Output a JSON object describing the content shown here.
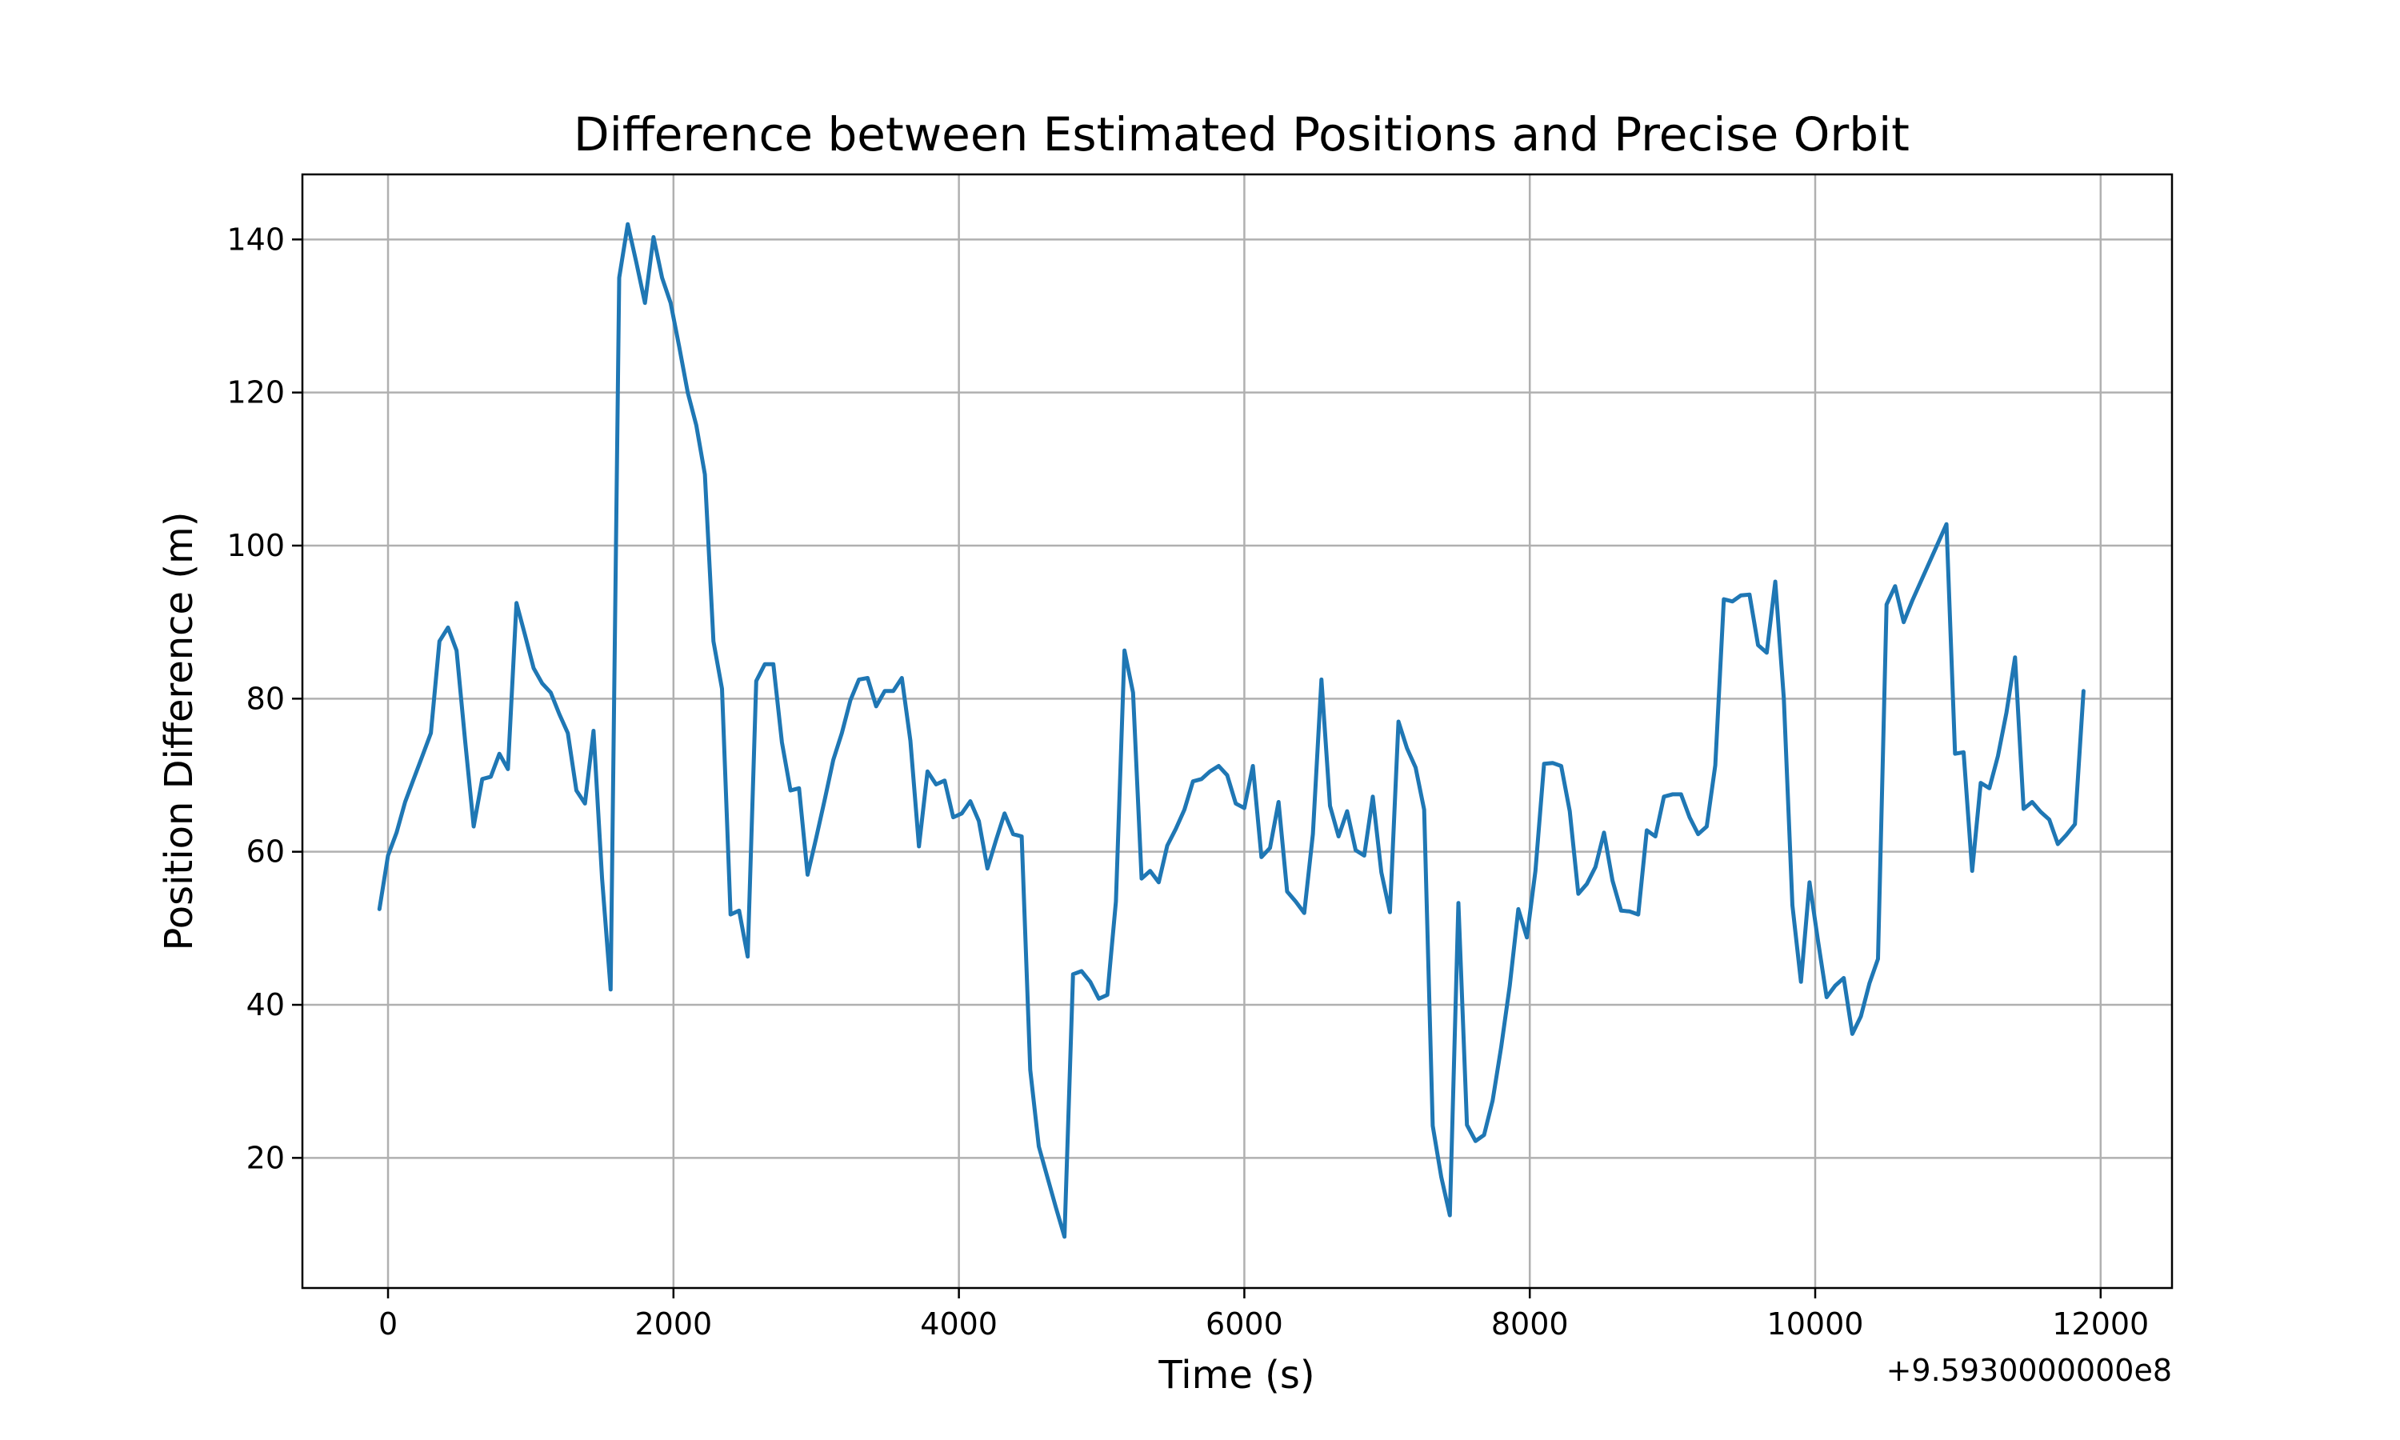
{
  "chart_data": {
    "type": "line",
    "title": "Difference between Estimated Positions and Precise Orbit",
    "xlabel": "Time (s)",
    "ylabel": "Position Difference (m)",
    "x_offset_label": "+9.5930000000e8",
    "xlim": [
      -600,
      12500
    ],
    "ylim": [
      3,
      148.5
    ],
    "x_ticks": [
      0,
      2000,
      4000,
      6000,
      8000,
      10000,
      12000
    ],
    "x_tick_labels": [
      "0",
      "2000",
      "4000",
      "6000",
      "8000",
      "10000",
      "12000"
    ],
    "y_ticks": [
      20,
      40,
      60,
      80,
      100,
      120,
      140
    ],
    "y_tick_labels": [
      "20",
      "40",
      "60",
      "80",
      "100",
      "120",
      "140"
    ],
    "grid": true,
    "line_color": "#1f77b4",
    "series": [
      {
        "x": [
          -60,
          0,
          60,
          120,
          180,
          240,
          300,
          360,
          420,
          480,
          540,
          600,
          660,
          720,
          780,
          840,
          900,
          960,
          1020,
          1080,
          1140,
          1200,
          1260,
          1320,
          1380,
          1440,
          1500,
          1560,
          1620,
          1680,
          1740,
          1800,
          1860,
          1920,
          1980,
          2040,
          2100,
          2160,
          2220,
          2280,
          2340,
          2400,
          2460,
          2520,
          2580,
          2640,
          2700,
          2760,
          2820,
          2880,
          2940,
          3000,
          3060,
          3120,
          3180,
          3240,
          3300,
          3360,
          3420,
          3480,
          3540,
          3600,
          3660,
          3720,
          3780,
          3840,
          3900,
          3960,
          4020,
          4080,
          4140,
          4200,
          4260,
          4320,
          4380,
          4440,
          4500,
          4560,
          4620,
          4680,
          4740,
          4800,
          4860,
          4920,
          4980,
          5040,
          5100,
          5160,
          5220,
          5280,
          5340,
          5400,
          5460,
          5520,
          5580,
          5640,
          5700,
          5760,
          5820,
          5880,
          5940,
          6000,
          6060,
          6120,
          6180,
          6240,
          6300,
          6360,
          6420,
          6480,
          6540,
          6600,
          6660,
          6720,
          6780,
          6840,
          6900,
          6960,
          7020,
          7080,
          7140,
          7200,
          7260,
          7320,
          7380,
          7440,
          7500,
          7560,
          7620,
          7680,
          7740,
          7800,
          7860,
          7920,
          7980,
          8040,
          8100,
          8160,
          8220,
          8280,
          8340,
          8400,
          8460,
          8520,
          8580,
          8640,
          8700,
          8760,
          8820,
          8880,
          8940,
          9000,
          9060,
          9120,
          9180,
          9240,
          9300,
          9360,
          9420,
          9480,
          9540,
          9600,
          9660,
          9720,
          9780,
          9840,
          9900,
          9960,
          10020,
          10080,
          10140,
          10200,
          10260,
          10320,
          10380,
          10440,
          10500,
          10560,
          10620,
          10680,
          10920,
          10980,
          11040,
          11100,
          11160,
          11220,
          11280,
          11340,
          11400,
          11460,
          11520,
          11580,
          11640,
          11700,
          11760,
          11820,
          11880
        ],
        "y": [
          52.5,
          59.5,
          62.5,
          66.5,
          69.5,
          72.5,
          75.5,
          87.5,
          89.3,
          86.3,
          74.5,
          63.3,
          69.5,
          69.8,
          72.8,
          70.8,
          92.5,
          88.3,
          84.0,
          82.0,
          80.8,
          78.0,
          75.5,
          68.0,
          66.3,
          75.8,
          56.5,
          42.0,
          135.0,
          142.0,
          137.0,
          131.7,
          140.3,
          135.0,
          131.7,
          126.0,
          120.0,
          115.7,
          109.3,
          87.5,
          81.3,
          51.8,
          52.3,
          46.3,
          82.3,
          84.5,
          84.5,
          74.3,
          68.0,
          68.3,
          57.0,
          61.8,
          66.8,
          72.0,
          75.5,
          79.8,
          82.5,
          82.7,
          79.0,
          81.0,
          81.0,
          82.7,
          74.5,
          60.7,
          70.5,
          68.8,
          69.3,
          64.5,
          65.0,
          66.6,
          64.0,
          57.8,
          61.5,
          65.0,
          62.3,
          62.0,
          31.5,
          21.5,
          17.5,
          13.5,
          9.7,
          44.0,
          44.4,
          43.0,
          40.8,
          41.3,
          53.5,
          86.3,
          80.8,
          56.5,
          57.5,
          56.0,
          60.8,
          63.0,
          65.5,
          69.2,
          69.5,
          70.5,
          71.2,
          70.0,
          66.3,
          65.7,
          71.2,
          59.3,
          60.5,
          66.5,
          54.8,
          53.5,
          52.0,
          62.3,
          82.5,
          66.0,
          62.0,
          65.3,
          60.2,
          59.5,
          67.2,
          57.3,
          52.1,
          77.0,
          73.5,
          71.0,
          65.5,
          24.2,
          17.5,
          12.5,
          53.3,
          24.3,
          22.2,
          23.0,
          27.5,
          34.5,
          42.5,
          52.5,
          48.8,
          57.5,
          71.5,
          71.6,
          71.2,
          65.3,
          54.5,
          55.8,
          58.0,
          62.5,
          56.2,
          52.3,
          52.2,
          51.8,
          62.8,
          62.0,
          67.2,
          67.5,
          67.5,
          64.5,
          62.3,
          63.3,
          71.3,
          93.0,
          92.7,
          93.5,
          93.6,
          87.0,
          86.0,
          95.3,
          80.0,
          53.0,
          43.0,
          56.0,
          48.3,
          41.0,
          42.5,
          43.5,
          36.2,
          38.5,
          42.8,
          46.0,
          92.3,
          94.7,
          90.0,
          92.8,
          102.8,
          72.8,
          73.0,
          57.5,
          69.0,
          68.3,
          72.5,
          78.2,
          85.4,
          65.6,
          66.5,
          65.2,
          64.2,
          61.0,
          62.2,
          63.6,
          81.0
        ]
      }
    ]
  }
}
